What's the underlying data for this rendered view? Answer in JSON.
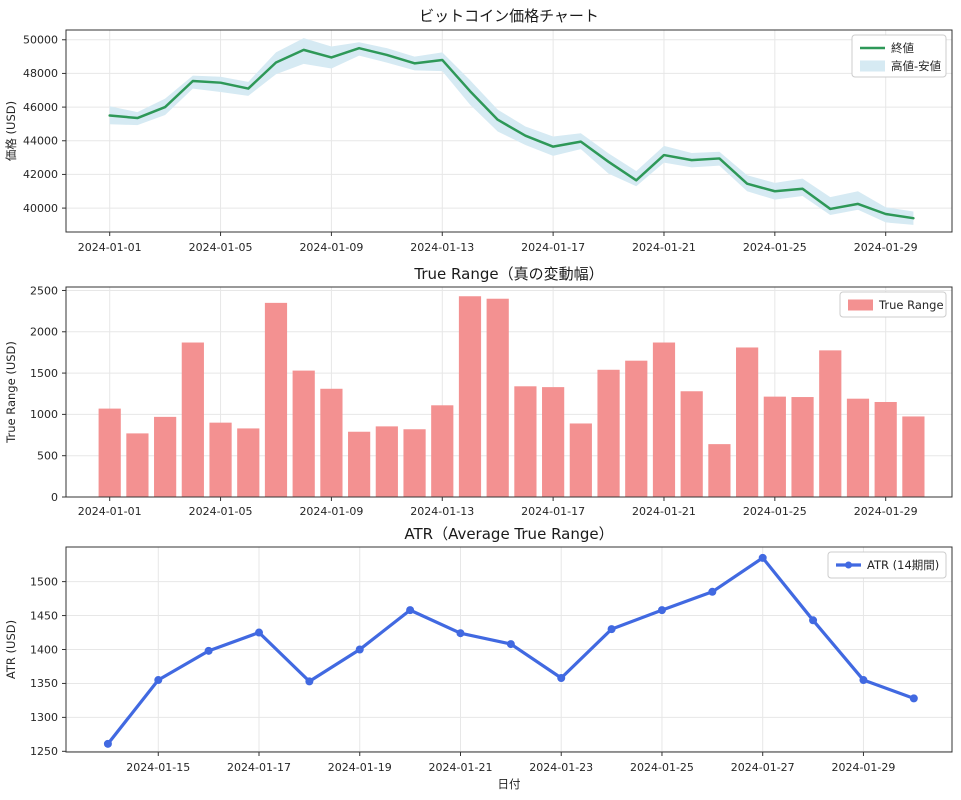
{
  "page": {
    "background": "#ffffff",
    "text_color": "#262626",
    "grid_color": "#e7e7e7"
  },
  "chart_data": [
    {
      "type": "line",
      "title": "ビットコイン価格チャート",
      "ylabel": "価格 (USD)",
      "x": [
        "2024-01-01",
        "2024-01-02",
        "2024-01-03",
        "2024-01-04",
        "2024-01-05",
        "2024-01-06",
        "2024-01-07",
        "2024-01-08",
        "2024-01-09",
        "2024-01-10",
        "2024-01-11",
        "2024-01-12",
        "2024-01-13",
        "2024-01-14",
        "2024-01-15",
        "2024-01-16",
        "2024-01-17",
        "2024-01-18",
        "2024-01-19",
        "2024-01-20",
        "2024-01-21",
        "2024-01-22",
        "2024-01-23",
        "2024-01-24",
        "2024-01-25",
        "2024-01-26",
        "2024-01-27",
        "2024-01-28",
        "2024-01-29",
        "2024-01-30"
      ],
      "series": [
        {
          "name": "終値",
          "style": "line",
          "color": "#2e9858",
          "line_width": 2.5,
          "values": [
            45500,
            45350,
            46000,
            47550,
            47450,
            47100,
            48650,
            49400,
            48950,
            49500,
            49100,
            48600,
            48800,
            46950,
            45250,
            44300,
            43650,
            43950,
            42750,
            41650,
            43150,
            42850,
            42950,
            41450,
            41000,
            41150,
            39950,
            40250,
            39650,
            39400
          ]
        },
        {
          "name": "高値-安値",
          "style": "band",
          "color": "#d6eaf3",
          "high": [
            46050,
            45700,
            46500,
            47870,
            47800,
            47500,
            49250,
            50100,
            49600,
            49850,
            49500,
            49000,
            49250,
            47600,
            45850,
            44850,
            44250,
            44450,
            43250,
            42200,
            43700,
            43270,
            43350,
            41950,
            41500,
            41750,
            40650,
            41000,
            40050,
            39800
          ],
          "low": [
            44980,
            44930,
            45530,
            47100,
            46900,
            46670,
            47950,
            48570,
            48290,
            49060,
            48645,
            48180,
            48140,
            46150,
            44550,
            43750,
            43100,
            43500,
            42050,
            41300,
            42700,
            42420,
            42520,
            41000,
            40500,
            40720,
            39590,
            39900,
            39150,
            39000
          ]
        }
      ],
      "xticks": [
        "2024-01-01",
        "2024-01-05",
        "2024-01-09",
        "2024-01-13",
        "2024-01-17",
        "2024-01-21",
        "2024-01-25",
        "2024-01-29"
      ],
      "yticks": [
        40000,
        42000,
        44000,
        46000,
        48000,
        50000
      ],
      "ylim": [
        38580,
        50580
      ],
      "grid": true,
      "legend_position": "upper right"
    },
    {
      "type": "bar",
      "title": "True Range（真の変動幅）",
      "ylabel": "True Range (USD)",
      "categories": [
        "2024-01-01",
        "2024-01-02",
        "2024-01-03",
        "2024-01-04",
        "2024-01-05",
        "2024-01-06",
        "2024-01-07",
        "2024-01-08",
        "2024-01-09",
        "2024-01-10",
        "2024-01-11",
        "2024-01-12",
        "2024-01-13",
        "2024-01-14",
        "2024-01-15",
        "2024-01-16",
        "2024-01-17",
        "2024-01-18",
        "2024-01-19",
        "2024-01-20",
        "2024-01-21",
        "2024-01-22",
        "2024-01-23",
        "2024-01-24",
        "2024-01-25",
        "2024-01-26",
        "2024-01-27",
        "2024-01-28",
        "2024-01-29",
        "2024-01-30"
      ],
      "series": [
        {
          "name": "True Range",
          "style": "bar",
          "color": "#f39191",
          "values": [
            1070,
            770,
            970,
            1870,
            900,
            830,
            2350,
            1530,
            1310,
            790,
            855,
            820,
            1110,
            2430,
            2400,
            1340,
            1330,
            890,
            1540,
            1650,
            1870,
            1280,
            640,
            1810,
            1215,
            1210,
            1775,
            1190,
            1150,
            975
          ]
        }
      ],
      "xticks": [
        "2024-01-01",
        "2024-01-05",
        "2024-01-09",
        "2024-01-13",
        "2024-01-17",
        "2024-01-21",
        "2024-01-25",
        "2024-01-29"
      ],
      "yticks": [
        0,
        500,
        1000,
        1500,
        2000,
        2500
      ],
      "ylim": [
        0,
        2542
      ],
      "grid": true,
      "legend_position": "upper right"
    },
    {
      "type": "line",
      "title": "ATR（Average True Range）",
      "ylabel": "ATR (USD)",
      "xlabel": "日付",
      "x": [
        "2024-01-14",
        "2024-01-15",
        "2024-01-16",
        "2024-01-17",
        "2024-01-18",
        "2024-01-19",
        "2024-01-20",
        "2024-01-21",
        "2024-01-22",
        "2024-01-23",
        "2024-01-24",
        "2024-01-25",
        "2024-01-26",
        "2024-01-27",
        "2024-01-28",
        "2024-01-29",
        "2024-01-30"
      ],
      "series": [
        {
          "name": "ATR (14期間)",
          "style": "line-marker",
          "color": "#4169e1",
          "line_width": 3.2,
          "marker_radius": 4,
          "values": [
            1261,
            1355,
            1398,
            1425,
            1353,
            1400,
            1458,
            1424,
            1408,
            1358,
            1430,
            1458,
            1485,
            1535,
            1443,
            1355,
            1328
          ]
        }
      ],
      "xticks": [
        "2024-01-15",
        "2024-01-17",
        "2024-01-19",
        "2024-01-21",
        "2024-01-23",
        "2024-01-25",
        "2024-01-27",
        "2024-01-29"
      ],
      "yticks": [
        1250,
        1300,
        1350,
        1400,
        1450,
        1500
      ],
      "ylim": [
        1249,
        1551
      ],
      "grid": true,
      "legend_position": "upper right"
    }
  ]
}
